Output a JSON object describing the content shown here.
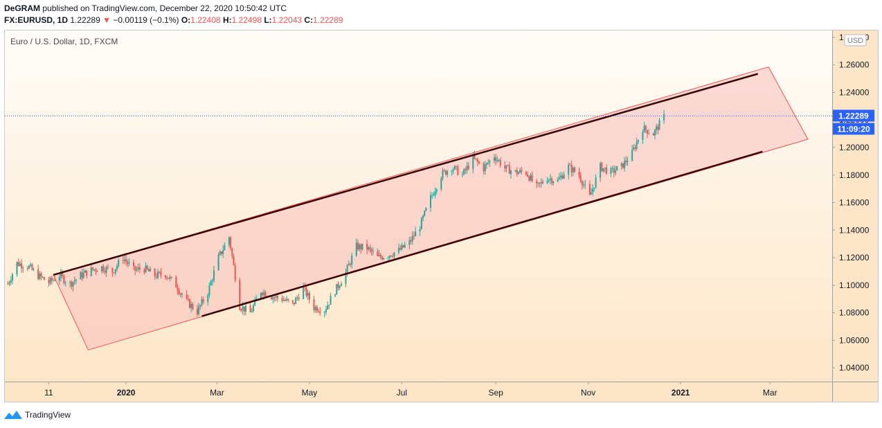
{
  "header": {
    "publisher": "DeGRAM",
    "published_text": "published on TradingView.com, December 22, 2020 10:50:42 UTC",
    "symbol": "FX:EURUSD, 1D",
    "last": "1.22289",
    "change": "−0.00119 (−0.1%)",
    "o_label": "O:",
    "o_value": "1.22408",
    "h_label": "H:",
    "h_value": "1.22498",
    "l_label": "L:",
    "l_value": "1.22043",
    "c_label": "C:",
    "c_value": "1.22289"
  },
  "legend": "Euro / U.S. Dollar, 1D, FXCM",
  "currency_badge": "USD",
  "price_badge": "1.22289",
  "countdown_badge": "11:09:20",
  "footer": {
    "brand": "TradingView"
  },
  "colors": {
    "up": "#26a69a",
    "down": "#ef5350",
    "channel_fill": "#f8c0bc",
    "channel_line": "#3b0000",
    "badge": "#2962ff"
  },
  "chart_data": {
    "type": "candlestick",
    "title": "Euro / U.S. Dollar, 1D, FXCM",
    "y_ticks": [
      "1.04000",
      "1.06000",
      "1.08000",
      "1.10000",
      "1.12000",
      "1.14000",
      "1.16000",
      "1.18000",
      "1.20000",
      "1.22000",
      "1.24000",
      "1.26000",
      "1.28000"
    ],
    "ylim": [
      1.03,
      1.285
    ],
    "x_ticks": [
      "11",
      "2020",
      "Mar",
      "May",
      "Jul",
      "Sep",
      "Nov",
      "2021",
      "Mar"
    ],
    "x_tick_dates": [
      "2019-11-11",
      "2020-01-01",
      "2020-03-01",
      "2020-05-01",
      "2020-07-01",
      "2020-09-01",
      "2020-11-01",
      "2021-01-01",
      "2021-03-01"
    ],
    "xlim": [
      "2019-10-13",
      "2021-04-11"
    ],
    "last_price": 1.22289,
    "close_series": [
      [
        "2019-10-15",
        1.101
      ],
      [
        "2019-10-21",
        1.116
      ],
      [
        "2019-10-28",
        1.114
      ],
      [
        "2019-11-04",
        1.107
      ],
      [
        "2019-11-11",
        1.102
      ],
      [
        "2019-11-18",
        1.107
      ],
      [
        "2019-11-25",
        1.101
      ],
      [
        "2019-12-02",
        1.107
      ],
      [
        "2019-12-09",
        1.111
      ],
      [
        "2019-12-16",
        1.113
      ],
      [
        "2019-12-23",
        1.11
      ],
      [
        "2019-12-30",
        1.12
      ],
      [
        "2020-01-06",
        1.111
      ],
      [
        "2020-01-13",
        1.112
      ],
      [
        "2020-01-20",
        1.107
      ],
      [
        "2020-01-27",
        1.108
      ],
      [
        "2020-02-03",
        1.1
      ],
      [
        "2020-02-10",
        1.088
      ],
      [
        "2020-02-17",
        1.081
      ],
      [
        "2020-02-24",
        1.095
      ],
      [
        "2020-03-02",
        1.12
      ],
      [
        "2020-03-09",
        1.135
      ],
      [
        "2020-03-16",
        1.085
      ],
      [
        "2020-03-23",
        1.08
      ],
      [
        "2020-03-30",
        1.096
      ],
      [
        "2020-04-06",
        1.092
      ],
      [
        "2020-04-13",
        1.09
      ],
      [
        "2020-04-20",
        1.086
      ],
      [
        "2020-04-27",
        1.098
      ],
      [
        "2020-05-04",
        1.084
      ],
      [
        "2020-05-11",
        1.082
      ],
      [
        "2020-05-18",
        1.096
      ],
      [
        "2020-05-25",
        1.109
      ],
      [
        "2020-06-01",
        1.128
      ],
      [
        "2020-06-08",
        1.127
      ],
      [
        "2020-06-15",
        1.12
      ],
      [
        "2020-06-22",
        1.122
      ],
      [
        "2020-06-29",
        1.125
      ],
      [
        "2020-07-06",
        1.131
      ],
      [
        "2020-07-13",
        1.143
      ],
      [
        "2020-07-20",
        1.163
      ],
      [
        "2020-07-27",
        1.18
      ],
      [
        "2020-08-03",
        1.186
      ],
      [
        "2020-08-10",
        1.18
      ],
      [
        "2020-08-17",
        1.192
      ],
      [
        "2020-08-24",
        1.185
      ],
      [
        "2020-08-31",
        1.194
      ],
      [
        "2020-09-07",
        1.185
      ],
      [
        "2020-09-14",
        1.182
      ],
      [
        "2020-09-21",
        1.182
      ],
      [
        "2020-09-28",
        1.171
      ],
      [
        "2020-10-05",
        1.178
      ],
      [
        "2020-10-12",
        1.176
      ],
      [
        "2020-10-19",
        1.186
      ],
      [
        "2020-10-26",
        1.18
      ],
      [
        "2020-11-02",
        1.164
      ],
      [
        "2020-11-09",
        1.186
      ],
      [
        "2020-11-16",
        1.182
      ],
      [
        "2020-11-23",
        1.186
      ],
      [
        "2020-11-30",
        1.196
      ],
      [
        "2020-12-07",
        1.214
      ],
      [
        "2020-12-14",
        1.21
      ],
      [
        "2020-12-21",
        1.222
      ]
    ],
    "channel_upper_line": [
      [
        "2019-11-14",
        1.1075
      ],
      [
        "2021-02-21",
        1.2535
      ]
    ],
    "channel_lower_line": [
      [
        "2020-02-20",
        1.0775
      ],
      [
        "2021-02-24",
        1.197
      ]
    ],
    "channel_box": [
      [
        "2019-11-14",
        1.1075
      ],
      [
        "2021-02-28",
        1.2585
      ],
      [
        "2021-03-26",
        1.206
      ],
      [
        "2019-12-07",
        1.053
      ]
    ]
  }
}
